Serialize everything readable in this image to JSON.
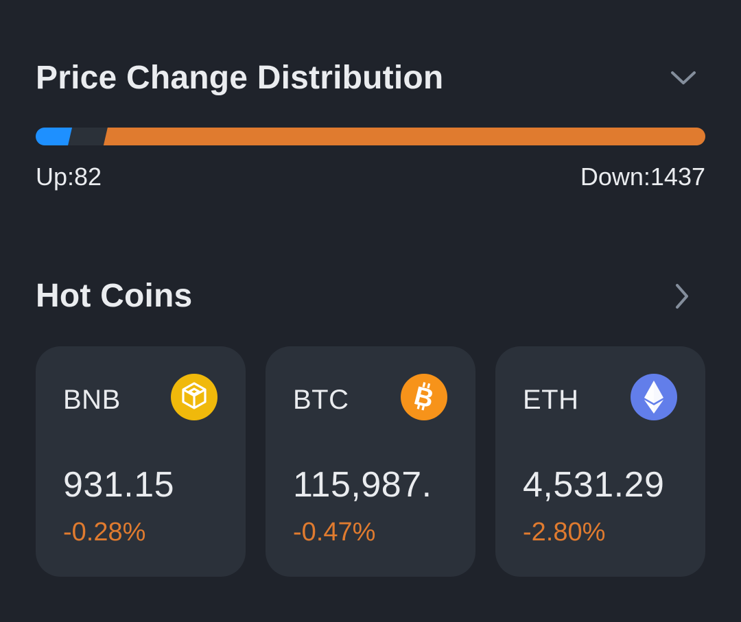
{
  "colors": {
    "background": "#1f232b",
    "card": "#2b313a",
    "up": "#1e90ff",
    "down": "#e07b2f",
    "neutral": "#2b3139",
    "text": "#eaecef",
    "muted": "#848e9c"
  },
  "distribution": {
    "title": "Price Change Distribution",
    "toggle_icon": "chevron-down-icon",
    "up_label": "Up:82",
    "down_label": "Down:1437",
    "up_count": 82,
    "down_count": 1437,
    "neutral_share_estimate": 0.05
  },
  "hot_coins": {
    "title": "Hot Coins",
    "more_icon": "chevron-right-icon",
    "coins": [
      {
        "symbol": "BNB",
        "price": "931.15",
        "change": "-0.28%",
        "icon": "bnb-icon",
        "icon_color": "#f0b90b"
      },
      {
        "symbol": "BTC",
        "price": "115,987.",
        "change": "-0.47%",
        "icon": "btc-icon",
        "icon_color": "#f7931a"
      },
      {
        "symbol": "ETH",
        "price": "4,531.29",
        "change": "-2.80%",
        "icon": "eth-icon",
        "icon_color": "#627eea"
      }
    ]
  }
}
